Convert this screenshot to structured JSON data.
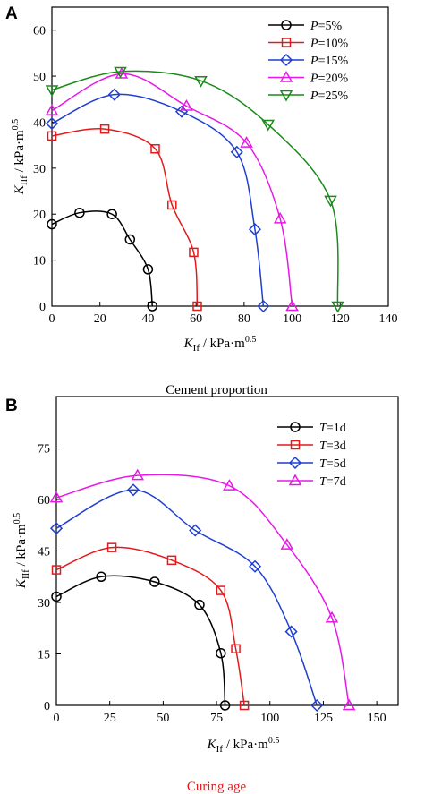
{
  "chart_data": [
    {
      "panel": "A",
      "type": "line",
      "xlabel": "K_If / kPa·m^0.5",
      "ylabel": "K_IIf / kPa·m^0.5",
      "xlim": [
        0,
        140
      ],
      "ylim": [
        0,
        65
      ],
      "xticks": [
        0,
        20,
        40,
        60,
        80,
        100,
        120,
        140
      ],
      "yticks": [
        0,
        10,
        20,
        30,
        40,
        50,
        60
      ],
      "caption": "Cement proportion",
      "caption_color": "#000000",
      "legend_position": "top-right",
      "series": [
        {
          "var": "P",
          "val": "5%",
          "color": "#000000",
          "marker": "circle",
          "points": [
            [
              0,
              17.8
            ],
            [
              11.5,
              20.3
            ],
            [
              25,
              20
            ],
            [
              32.5,
              14.5
            ],
            [
              40,
              8
            ],
            [
              41.8,
              0
            ]
          ]
        },
        {
          "var": "P",
          "val": "10%",
          "color": "#e31a1c",
          "marker": "square",
          "points": [
            [
              0,
              37
            ],
            [
              22,
              38.5
            ],
            [
              43,
              34.2
            ],
            [
              50,
              22
            ],
            [
              59,
              11.7
            ],
            [
              60.5,
              0
            ]
          ]
        },
        {
          "var": "P",
          "val": "15%",
          "color": "#1f3fd0",
          "marker": "diamond",
          "points": [
            [
              0,
              39.7
            ],
            [
              26,
              46
            ],
            [
              54,
              42.3
            ],
            [
              77,
              33.5
            ],
            [
              84.5,
              16.7
            ],
            [
              88,
              0
            ]
          ]
        },
        {
          "var": "P",
          "val": "20%",
          "color": "#e619e6",
          "marker": "triangle-up",
          "points": [
            [
              0,
              42.5
            ],
            [
              29,
              50.5
            ],
            [
              56,
              43.5
            ],
            [
              81,
              35.5
            ],
            [
              95,
              19
            ],
            [
              100,
              0
            ]
          ]
        },
        {
          "var": "P",
          "val": "25%",
          "color": "#1a8a1a",
          "marker": "triangle-down",
          "points": [
            [
              0,
              47
            ],
            [
              28.5,
              51
            ],
            [
              62,
              49
            ],
            [
              90,
              39.5
            ],
            [
              116,
              23
            ],
            [
              119,
              0
            ]
          ]
        }
      ]
    },
    {
      "panel": "B",
      "type": "line",
      "xlabel": "K_If / kPa·m^0.5",
      "ylabel": "K_IIf / kPa·m^0.5",
      "xlim": [
        0,
        160
      ],
      "ylim": [
        0,
        90
      ],
      "xticks": [
        0,
        25,
        50,
        75,
        100,
        125,
        150
      ],
      "yticks": [
        0,
        15,
        30,
        45,
        60,
        75
      ],
      "caption": "Curing age",
      "caption_color": "#e31a1c",
      "legend_position": "top-right",
      "series": [
        {
          "var": "T",
          "val": "1d",
          "color": "#000000",
          "marker": "circle",
          "points": [
            [
              0,
              31.7
            ],
            [
              21,
              37.5
            ],
            [
              46,
              36
            ],
            [
              67,
              29.3
            ],
            [
              77,
              15.2
            ],
            [
              79,
              0
            ]
          ]
        },
        {
          "var": "T",
          "val": "3d",
          "color": "#e31a1c",
          "marker": "square",
          "points": [
            [
              0,
              39.5
            ],
            [
              26,
              46
            ],
            [
              54,
              42.3
            ],
            [
              77,
              33.5
            ],
            [
              84,
              16.5
            ],
            [
              88,
              0
            ]
          ]
        },
        {
          "var": "T",
          "val": "5d",
          "color": "#1f3fd0",
          "marker": "diamond",
          "points": [
            [
              0,
              51.6
            ],
            [
              36,
              62.8
            ],
            [
              65,
              51
            ],
            [
              93,
              40.5
            ],
            [
              110,
              21.5
            ],
            [
              122,
              0
            ]
          ]
        },
        {
          "var": "T",
          "val": "7d",
          "color": "#e619e6",
          "marker": "triangle-up",
          "points": [
            [
              0,
              60.5
            ],
            [
              38,
              67
            ],
            [
              81,
              64
            ],
            [
              108,
              46.8
            ],
            [
              129,
              25.5
            ],
            [
              137,
              0
            ]
          ]
        }
      ]
    }
  ]
}
